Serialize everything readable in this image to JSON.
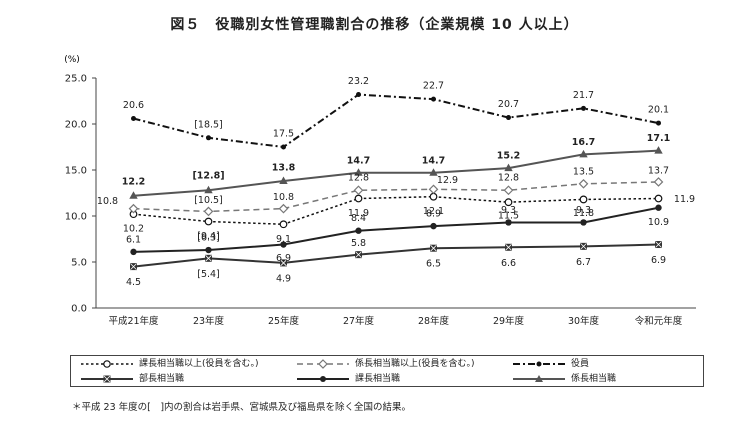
{
  "title": "図５　役職別女性管理職割合の推移（企業規模 10 人以上）",
  "footnote": "＊平成 23 年度の[　]内の割合は岩手県、宮城県及び福島県を除く全国の結果。",
  "chart_data": {
    "type": "line",
    "unit_label": "(%)",
    "ylim": [
      0,
      25
    ],
    "yticks": [
      "0.0",
      "5.0",
      "10.0",
      "15.0",
      "20.0",
      "25.0"
    ],
    "categories": [
      "平成21年度",
      "23年度",
      "25年度",
      "27年度",
      "28年度",
      "29年度",
      "30年度",
      "令和元年度"
    ],
    "grid": false,
    "legend_position": "bottom",
    "series": [
      {
        "name": "課長相当職以上(役員を含む。)",
        "style": "dotted-open-circle",
        "color": "#111111",
        "values": [
          10.2,
          9.4,
          9.1,
          11.9,
          12.1,
          11.5,
          11.8,
          11.9
        ],
        "labels": [
          "10.2",
          "[9.4]",
          "9.1",
          "11.9",
          "12.1",
          "11.5",
          "11.8",
          "11.9"
        ]
      },
      {
        "name": "係長相当職以上(役員を含む。)",
        "style": "dashed-open-diamond",
        "color": "#777777",
        "values": [
          10.8,
          10.5,
          10.8,
          12.8,
          12.9,
          12.8,
          13.5,
          13.7
        ],
        "labels": [
          "10.8",
          "[10.5]",
          "10.8",
          "12.8",
          "12.9",
          "12.8",
          "13.5",
          "13.7"
        ]
      },
      {
        "name": "役員",
        "style": "dashed-dot",
        "color": "#111111",
        "values": [
          20.6,
          18.5,
          17.5,
          23.2,
          22.7,
          20.7,
          21.7,
          20.1
        ],
        "labels": [
          "20.6",
          "[18.5]",
          "17.5",
          "23.2",
          "22.7",
          "20.7",
          "21.7",
          "20.1"
        ]
      },
      {
        "name": "部長相当職",
        "style": "solid-square-x",
        "color": "#333333",
        "values": [
          4.5,
          5.4,
          4.9,
          5.8,
          6.5,
          6.6,
          6.7,
          6.9
        ],
        "labels": [
          "4.5",
          "[5.4]",
          "4.9",
          "5.8",
          "6.5",
          "6.6",
          "6.7",
          "6.9"
        ]
      },
      {
        "name": "課長相当職",
        "style": "solid-dot",
        "color": "#222222",
        "values": [
          6.1,
          6.3,
          6.9,
          8.4,
          8.9,
          9.3,
          9.3,
          10.9
        ],
        "labels": [
          "6.1",
          "[6.3]",
          "6.9",
          "8.4",
          "8.9",
          "9.3",
          "9.3",
          "10.9"
        ]
      },
      {
        "name": "係長相当職",
        "style": "solid-triangle",
        "color": "#555555",
        "values": [
          12.2,
          12.8,
          13.8,
          14.7,
          14.7,
          15.2,
          16.7,
          17.1
        ],
        "labels": [
          "12.2",
          "[12.8]",
          "13.8",
          "14.7",
          "14.7",
          "15.2",
          "16.7",
          "17.1"
        ]
      }
    ]
  }
}
